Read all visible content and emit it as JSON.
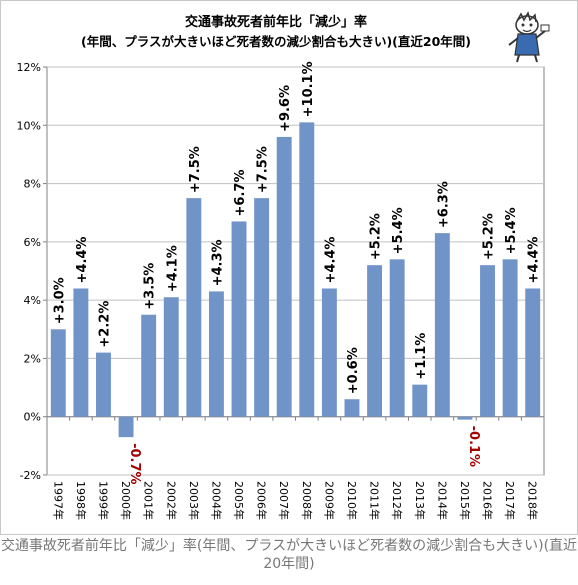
{
  "chart_data": {
    "type": "bar",
    "title": "交通事故死者前年比「減少」率",
    "subtitle": "(年間、プラスが大きいほど死者数の減少割合も大きい)(直近20年間)",
    "categories": [
      "1997年",
      "1998年",
      "1999年",
      "2000年",
      "2001年",
      "2002年",
      "2003年",
      "2004年",
      "2005年",
      "2006年",
      "2007年",
      "2008年",
      "2009年",
      "2010年",
      "2011年",
      "2012年",
      "2013年",
      "2014年",
      "2015年",
      "2016年",
      "2017年",
      "2018年"
    ],
    "values": [
      3.0,
      4.4,
      2.2,
      -0.7,
      3.5,
      4.1,
      7.5,
      4.3,
      6.7,
      7.5,
      9.6,
      10.1,
      4.4,
      0.6,
      5.2,
      5.4,
      1.1,
      6.3,
      -0.1,
      5.2,
      5.4,
      4.4
    ],
    "data_labels": [
      "+3.0%",
      "+4.4%",
      "+2.2%",
      "-0.7%",
      "+3.5%",
      "+4.1%",
      "+7.5%",
      "+4.3%",
      "+6.7%",
      "+7.5%",
      "+9.6%",
      "+10.1%",
      "+4.4%",
      "+0.6%",
      "+5.2%",
      "+5.4%",
      "+1.1%",
      "+6.3%",
      "-0.1%",
      "+5.2%",
      "+5.4%",
      "+4.4%"
    ],
    "y_ticks": [
      "-2%",
      "0%",
      "2%",
      "4%",
      "6%",
      "8%",
      "10%",
      "12%"
    ],
    "ylim": [
      -2,
      12
    ],
    "grid": true,
    "colors": {
      "bar": "#7094c8",
      "positive_label": "#000000",
      "negative_label": "#a00000",
      "grid": "#c0c0c0",
      "axis": "#808080"
    }
  },
  "caption": "交通事故死者前年比「減少」率(年間、プラスが大きいほど死者数の減少割合も大きい)(直近20年間)"
}
